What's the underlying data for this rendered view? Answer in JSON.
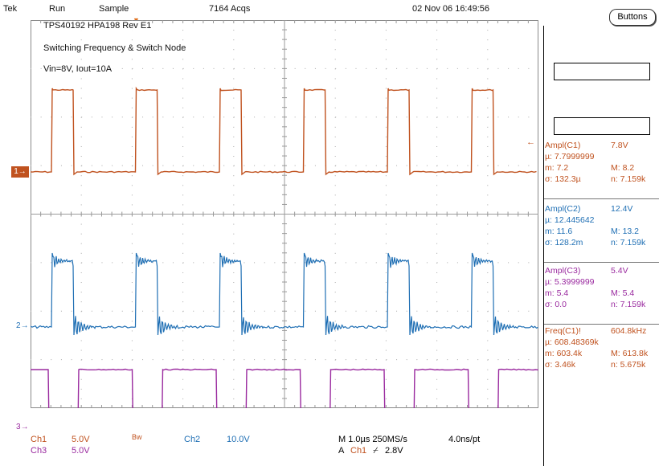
{
  "header": {
    "brand": "Tek",
    "state": "Run",
    "mode": "Sample",
    "acqs": "7164 Acqs",
    "datetime": "02 Nov 06 16:49:56",
    "buttons_label": "Buttons"
  },
  "annotation": {
    "line1": "TPS40192 HPA198 Rev E1",
    "line2": "Switching Frequency & Switch Node",
    "line3": "Vin=8V, Iout=10A"
  },
  "colors": {
    "ch1": "#c0521f",
    "ch2": "#1f6fb4",
    "ch3": "#9a2a9f",
    "grid": "#a9a9a9"
  },
  "markers": {
    "ch1": "1",
    "ch2": "2",
    "ch3": "3"
  },
  "measurements": [
    {
      "title": "Ampl(C1)",
      "value": "7.8V",
      "mu": "µ: 7.7999999",
      "m": "m: 7.2",
      "M": "M: 8.2",
      "sigma": "σ: 132.3µ",
      "n": "n: 7.159k",
      "color": "#c0521f"
    },
    {
      "title": "Ampl(C2)",
      "value": "12.4V",
      "mu": "µ: 12.445642",
      "m": "m: 11.6",
      "M": "M: 13.2",
      "sigma": "σ: 128.2m",
      "n": "n: 7.159k",
      "color": "#1f6fb4"
    },
    {
      "title": "Ampl(C3)",
      "value": "5.4V",
      "mu": "µ: 5.3999999",
      "m": "m: 5.4",
      "M": "M: 5.4",
      "sigma": "σ: 0.0",
      "n": "n: 7.159k",
      "color": "#9a2a9f"
    },
    {
      "title": "Freq(C1)!",
      "value": "604.8kHz",
      "mu": "µ: 608.48369k",
      "m": "m: 603.4k",
      "M": "M: 613.8k",
      "sigma": "σ: 3.46k",
      "n": "n: 5.675k",
      "color": "#c0521f"
    }
  ],
  "footer": {
    "ch1_label": "Ch1",
    "ch1_scale": "5.0V",
    "bw_label": "Bw",
    "ch2_label": "Ch2",
    "ch2_scale": "10.0V",
    "ch3_label": "Ch3",
    "ch3_scale": "5.0V",
    "timebase": "M 1.0µs 250MS/s",
    "resolution": "4.0ns/pt",
    "trigger_prefix": "A",
    "trigger_source": "Ch1",
    "trigger_slope": "⌿",
    "trigger_level": "2.8V"
  }
}
